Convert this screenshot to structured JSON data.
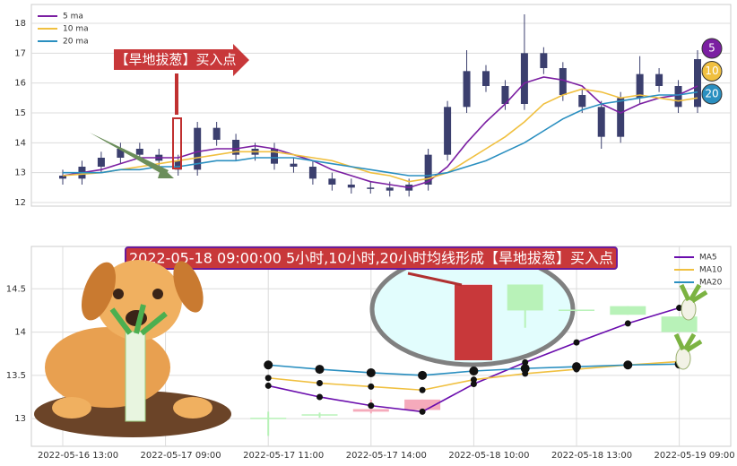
{
  "chart_data": [
    {
      "type": "candlestick",
      "annotation": "【旱地拔葱】买入点",
      "badges": [
        "5",
        "10",
        "20"
      ],
      "ylim": [
        11.88,
        18.63
      ],
      "yticks": [
        12,
        13,
        14,
        15,
        16,
        17,
        18
      ],
      "grid": true,
      "legend": "upper left",
      "candles": {
        "color": "#3b3f6e",
        "open": [
          12.9,
          12.8,
          13.2,
          13.5,
          13.8,
          13.6,
          13.4,
          13.1,
          14.5,
          14.1,
          13.6,
          13.8,
          13.3,
          13.2,
          12.8,
          12.6,
          12.5,
          12.5,
          12.4,
          12.6,
          13.6,
          15.2,
          16.4,
          15.9,
          15.3,
          17.0,
          16.5,
          15.6,
          15.2,
          14.2,
          15.5,
          16.3,
          15.9,
          15.2
        ],
        "high": [
          13.1,
          13.4,
          13.7,
          14.0,
          14.0,
          13.8,
          13.6,
          14.7,
          14.7,
          14.3,
          14.0,
          14.0,
          13.5,
          13.4,
          13.0,
          12.8,
          12.7,
          12.7,
          12.8,
          13.8,
          15.4,
          17.1,
          16.6,
          16.1,
          18.3,
          17.2,
          16.7,
          15.8,
          15.4,
          15.7,
          16.9,
          16.5,
          16.1,
          17.1
        ],
        "low": [
          12.6,
          12.6,
          13.0,
          13.3,
          13.4,
          13.2,
          12.9,
          12.9,
          13.9,
          13.4,
          13.4,
          13.1,
          13.0,
          12.6,
          12.4,
          12.3,
          12.3,
          12.2,
          12.2,
          12.4,
          13.4,
          15.0,
          15.7,
          15.1,
          15.1,
          16.3,
          15.4,
          15.0,
          13.8,
          14.0,
          15.3,
          15.7,
          15.0,
          15.0
        ],
        "close": [
          12.8,
          13.2,
          13.5,
          13.8,
          13.6,
          13.4,
          13.1,
          14.5,
          14.1,
          13.6,
          13.8,
          13.3,
          13.2,
          12.8,
          12.6,
          12.5,
          12.5,
          12.4,
          12.6,
          13.6,
          15.2,
          16.4,
          15.9,
          15.3,
          17.0,
          16.5,
          15.6,
          15.2,
          14.2,
          15.5,
          16.3,
          15.9,
          15.2,
          16.8
        ]
      },
      "series": [
        {
          "name": "5 ma",
          "color": "#7b1fa2",
          "values": [
            12.9,
            13.0,
            13.1,
            13.3,
            13.5,
            13.5,
            13.5,
            13.7,
            13.8,
            13.8,
            13.9,
            13.8,
            13.6,
            13.4,
            13.1,
            12.9,
            12.7,
            12.6,
            12.5,
            12.7,
            13.2,
            14.0,
            14.7,
            15.3,
            16.0,
            16.2,
            16.1,
            15.9,
            15.3,
            15.0,
            15.3,
            15.5,
            15.6,
            15.9
          ]
        },
        {
          "name": "10 ma",
          "color": "#f0c040",
          "values": [
            12.9,
            12.95,
            13.0,
            13.1,
            13.2,
            13.3,
            13.4,
            13.5,
            13.6,
            13.7,
            13.7,
            13.7,
            13.6,
            13.5,
            13.4,
            13.2,
            13.0,
            12.9,
            12.7,
            12.8,
            13.0,
            13.4,
            13.8,
            14.2,
            14.7,
            15.3,
            15.6,
            15.8,
            15.7,
            15.5,
            15.6,
            15.5,
            15.4,
            15.5
          ]
        },
        {
          "name": "20 ma",
          "color": "#2a8fc0",
          "values": [
            13.0,
            13.0,
            13.0,
            13.1,
            13.1,
            13.2,
            13.2,
            13.3,
            13.4,
            13.4,
            13.5,
            13.5,
            13.5,
            13.4,
            13.3,
            13.2,
            13.1,
            13.0,
            12.9,
            12.9,
            13.0,
            13.2,
            13.4,
            13.7,
            14.0,
            14.4,
            14.8,
            15.1,
            15.3,
            15.4,
            15.5,
            15.6,
            15.6,
            15.7
          ]
        }
      ]
    },
    {
      "type": "candlestick",
      "annotation": "2022-05-18 09:00:00 5小时,10小时,20小时均线形成【旱地拔葱】买入点",
      "categories": [
        "2022-05-16 13:00",
        null,
        "2022-05-17 09:00",
        null,
        "2022-05-17 11:00",
        null,
        "2022-05-17 14:00",
        null,
        "2022-05-18 10:00",
        null,
        "2022-05-18 13:00",
        null,
        "2022-05-19 09:00"
      ],
      "ylim": [
        12.68,
        14.99
      ],
      "yticks": [
        13.0,
        13.5,
        14.0,
        14.5
      ],
      "grid": true,
      "legend": "upper right",
      "candles": {
        "up_color": "#f5aabb",
        "down_color": "#b8f2b8",
        "open": [
          null,
          null,
          null,
          null,
          13.01,
          13.05,
          13.08,
          13.1,
          13.68,
          14.55,
          14.26,
          14.3,
          14.18
        ],
        "high": [
          null,
          null,
          null,
          null,
          13.08,
          13.07,
          13.22,
          13.22,
          14.55,
          14.55,
          14.26,
          14.3,
          14.18
        ],
        "low": [
          null,
          null,
          null,
          null,
          12.8,
          13.01,
          13.06,
          13.08,
          13.68,
          14.05,
          14.24,
          14.2,
          14.0
        ],
        "close": [
          null,
          null,
          null,
          null,
          13.0,
          13.04,
          13.11,
          13.22,
          14.55,
          14.25,
          14.25,
          14.2,
          14.0
        ]
      },
      "series": [
        {
          "name": "MA5",
          "color": "#6a0dad",
          "values": [
            null,
            null,
            null,
            null,
            13.38,
            13.25,
            13.15,
            13.08,
            13.4,
            13.65,
            13.88,
            14.1,
            14.28
          ]
        },
        {
          "name": "MA10",
          "color": "#f0c040",
          "values": [
            null,
            null,
            null,
            null,
            13.47,
            13.41,
            13.37,
            13.33,
            13.45,
            13.52,
            13.57,
            13.62,
            13.66
          ]
        },
        {
          "name": "MA20",
          "color": "#2a8fc0",
          "values": [
            null,
            null,
            null,
            null,
            13.62,
            13.57,
            13.53,
            13.5,
            13.55,
            13.58,
            13.6,
            13.62,
            13.63
          ]
        }
      ]
    }
  ]
}
